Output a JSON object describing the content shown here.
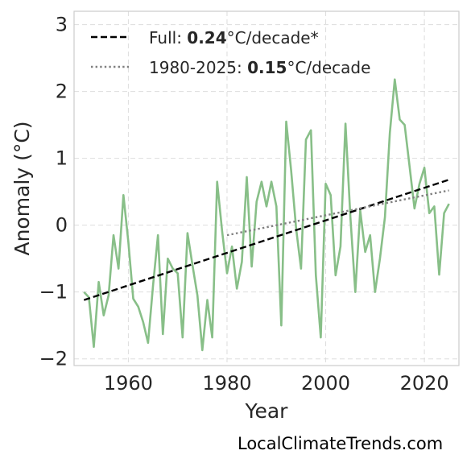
{
  "chart_data": {
    "type": "line",
    "xlabel": "Year",
    "ylabel": "Anomaly (°C)",
    "xlim": [
      1949,
      2027
    ],
    "ylim": [
      -2.1,
      3.2
    ],
    "x_ticks": [
      1960,
      1980,
      2000,
      2020
    ],
    "y_ticks": [
      -2,
      -1,
      0,
      1,
      2,
      3
    ],
    "x_tick_labels": [
      "1960",
      "1980",
      "2000",
      "2020"
    ],
    "y_tick_labels": [
      "−2",
      "−1",
      "0",
      "1",
      "2",
      "3"
    ],
    "grid": true,
    "legend_position": "top-left",
    "series": [
      {
        "color": "#88bf88",
        "x": [
          1951,
          1952,
          1953,
          1954,
          1955,
          1956,
          1957,
          1958,
          1959,
          1960,
          1961,
          1962,
          1963,
          1964,
          1965,
          1966,
          1967,
          1968,
          1969,
          1970,
          1971,
          1972,
          1973,
          1974,
          1975,
          1976,
          1977,
          1978,
          1979,
          1980,
          1981,
          1982,
          1983,
          1984,
          1985,
          1986,
          1987,
          1988,
          1989,
          1990,
          1991,
          1992,
          1993,
          1994,
          1995,
          1996,
          1997,
          1998,
          1999,
          2000,
          2001,
          2002,
          2003,
          2004,
          2005,
          2006,
          2007,
          2008,
          2009,
          2010,
          2011,
          2012,
          2013,
          2014,
          2015,
          2016,
          2017,
          2018,
          2019,
          2020,
          2021,
          2022,
          2023,
          2024,
          2025
        ],
        "y": [
          -1.0,
          -1.08,
          -1.82,
          -0.85,
          -1.35,
          -1.05,
          -0.15,
          -0.65,
          0.45,
          -0.25,
          -1.1,
          -1.22,
          -1.45,
          -1.76,
          -0.9,
          -0.15,
          -1.63,
          -0.5,
          -0.65,
          -0.72,
          -1.68,
          -0.12,
          -0.6,
          -1.05,
          -1.87,
          -1.12,
          -1.68,
          0.65,
          -0.08,
          -0.72,
          -0.32,
          -0.95,
          -0.55,
          0.72,
          -0.62,
          0.35,
          0.65,
          0.28,
          0.65,
          0.28,
          -1.5,
          1.55,
          0.82,
          -0.05,
          -0.65,
          1.28,
          1.42,
          -0.75,
          -1.68,
          0.62,
          0.45,
          -0.75,
          -0.32,
          1.52,
          0.12,
          -1.0,
          0.22,
          -0.4,
          -0.15,
          -1.0,
          -0.5,
          0.12,
          1.38,
          2.18,
          1.58,
          1.5,
          0.88,
          0.25,
          0.62,
          0.86,
          0.18,
          0.28,
          -0.74,
          0.18,
          0.32
        ]
      },
      {
        "name": "Full: 0.24°C/decade*",
        "style": "dashed",
        "color": "#000000",
        "x": [
          1951,
          2025
        ],
        "y": [
          -1.12,
          0.68
        ]
      },
      {
        "name": "1980-2025: 0.15°C/decade",
        "style": "dotted",
        "color": "#808080",
        "x": [
          1980,
          2025
        ],
        "y": [
          -0.15,
          0.52
        ]
      }
    ],
    "legend": [
      {
        "prefix": "Full: ",
        "bold": "0.24",
        "suffix": "°C/decade*"
      },
      {
        "prefix": "1980-2025: ",
        "bold": "0.15",
        "suffix": "°C/decade"
      }
    ]
  },
  "credit": "LocalClimateTrends.com"
}
